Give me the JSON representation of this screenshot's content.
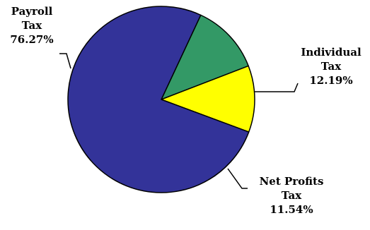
{
  "chart_data": {
    "type": "pie",
    "start_angle_deg": 65,
    "direction": "clockwise",
    "slices": [
      {
        "name": "Individual Tax",
        "label_lines": [
          "Individual",
          "Tax",
          "12.19%"
        ],
        "value": 12.19,
        "color": "#339966"
      },
      {
        "name": "Net Profits Tax",
        "label_lines": [
          "Net Profits",
          "Tax",
          "11.54%"
        ],
        "value": 11.54,
        "color": "#ffff00"
      },
      {
        "name": "Payroll Tax",
        "label_lines": [
          "Payroll",
          "Tax",
          "76.27%"
        ],
        "value": 76.27,
        "color": "#333399"
      }
    ]
  }
}
